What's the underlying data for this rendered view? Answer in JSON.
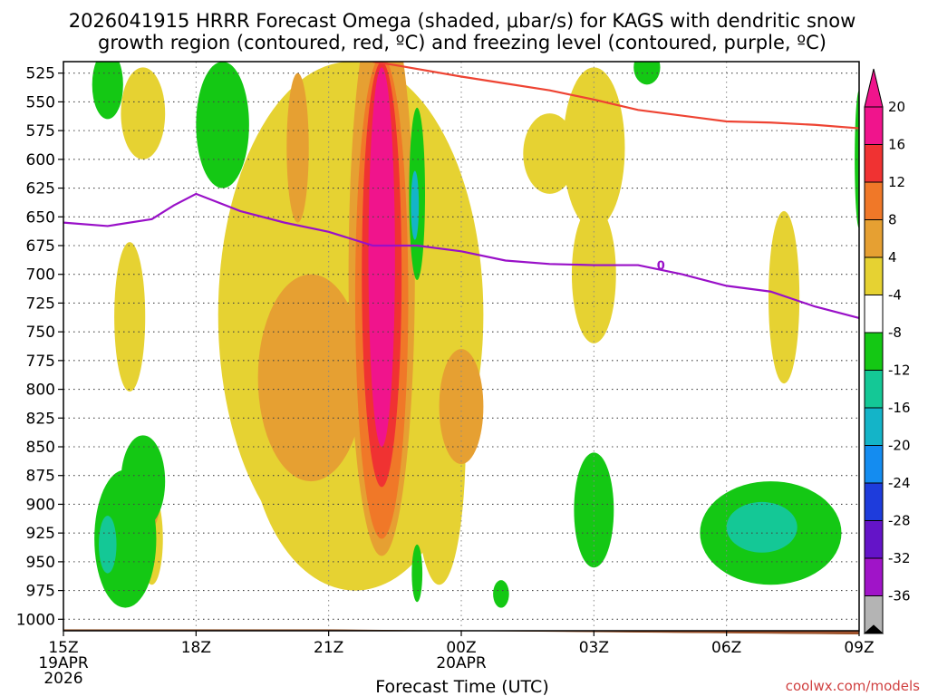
{
  "chart_data": {
    "type": "heatmap",
    "title_line1": "2026041915 HRRR Forecast Omega (shaded, μbar/s) for KAGS with dendritic snow",
    "title_line2": "growth region (contoured, red, ºC) and freezing level (contoured, purple, ºC)",
    "xlabel": "Forecast Time (UTC)",
    "credit": "coolwx.com/models",
    "x_ticks": [
      {
        "hour": 0,
        "label": "15Z",
        "date": "19APR",
        "year": "2026"
      },
      {
        "hour": 3,
        "label": "18Z"
      },
      {
        "hour": 6,
        "label": "21Z"
      },
      {
        "hour": 9,
        "label": "00Z",
        "date": "20APR"
      },
      {
        "hour": 12,
        "label": "03Z"
      },
      {
        "hour": 15,
        "label": "06Z"
      },
      {
        "hour": 18,
        "label": "09Z"
      }
    ],
    "xlim": [
      0,
      18
    ],
    "ylim": [
      1010,
      515
    ],
    "y_ticks": [
      525,
      550,
      575,
      600,
      625,
      650,
      675,
      700,
      725,
      750,
      775,
      800,
      825,
      850,
      875,
      900,
      925,
      950,
      975,
      1000
    ],
    "colorbar": {
      "labels": [
        "20",
        "16",
        "12",
        "8",
        "4",
        "-4",
        "-8",
        "-12",
        "-16",
        "-20",
        "-24",
        "-28",
        "-32",
        "-36"
      ],
      "colors": [
        "#f0148c",
        "#f03232",
        "#f07828",
        "#e6a032",
        "#e6d232",
        "#ffffff",
        "#14c814",
        "#14c896",
        "#14b4c8",
        "#148cf0",
        "#1e3cdc",
        "#6414c8",
        "#a014c8",
        "#b4b4b4"
      ]
    },
    "freezing_level_label": "0",
    "freezing_level": {
      "hours": [
        0,
        1,
        2,
        2.5,
        3,
        4,
        5,
        6,
        7,
        8,
        9,
        10,
        11,
        12,
        13,
        14,
        15,
        16,
        17,
        18
      ],
      "pressure": [
        655,
        658,
        652,
        640,
        630,
        645,
        655,
        663,
        675,
        675,
        680,
        688,
        691,
        692,
        692,
        700,
        710,
        715,
        728,
        738
      ]
    },
    "dgz_top": {
      "hours": [
        7,
        7.5,
        9,
        10,
        11,
        12,
        13,
        15,
        16,
        17,
        18
      ],
      "pressure": [
        515,
        518,
        528,
        534,
        540,
        548,
        557,
        567,
        568,
        570,
        573
      ]
    },
    "ground": {
      "hours": [
        0,
        6,
        9,
        12,
        15,
        18
      ],
      "pressure": [
        1009,
        1009,
        1010,
        1011,
        1012,
        1013
      ]
    },
    "omega_fields": [
      {
        "color": "#e6d232",
        "center_hour": 1.8,
        "center_p": 560,
        "half_width_hours": 0.5,
        "half_depth": 40
      },
      {
        "color": "#e6d232",
        "center_hour": 1.5,
        "center_p": 737,
        "half_width_hours": 0.35,
        "half_depth": 65
      },
      {
        "color": "#e6d232",
        "center_hour": 2.0,
        "center_p": 930,
        "half_width_hours": 0.25,
        "half_depth": 40
      },
      {
        "color": "#e6d232",
        "center_hour": 6.5,
        "center_p": 735,
        "half_width_hours": 3.0,
        "half_depth": 220
      },
      {
        "color": "#e6d232",
        "center_hour": 6.6,
        "center_p": 830,
        "half_width_hours": 2.4,
        "half_depth": 145
      },
      {
        "color": "#e6d232",
        "center_hour": 8.5,
        "center_p": 845,
        "half_width_hours": 0.6,
        "half_depth": 125
      },
      {
        "color": "#e6d232",
        "center_hour": 9.2,
        "center_p": 760,
        "half_width_hours": 0.2,
        "half_depth": 55
      },
      {
        "color": "#e6d232",
        "center_hour": 12.0,
        "center_p": 590,
        "half_width_hours": 0.7,
        "half_depth": 70
      },
      {
        "color": "#e6d232",
        "center_hour": 12.0,
        "center_p": 700,
        "half_width_hours": 0.5,
        "half_depth": 60
      },
      {
        "color": "#e6d232",
        "center_hour": 16.3,
        "center_p": 720,
        "half_width_hours": 0.35,
        "half_depth": 75
      },
      {
        "color": "#e6d232",
        "center_hour": 11.0,
        "center_p": 595,
        "half_width_hours": 0.6,
        "half_depth": 35
      },
      {
        "color": "#e6a032",
        "center_hour": 5.3,
        "center_p": 590,
        "half_width_hours": 0.25,
        "half_depth": 65
      },
      {
        "color": "#e6a032",
        "center_hour": 5.6,
        "center_p": 790,
        "half_width_hours": 1.2,
        "half_depth": 90
      },
      {
        "color": "#e6a032",
        "center_hour": 9.0,
        "center_p": 815,
        "half_width_hours": 0.5,
        "half_depth": 50
      },
      {
        "color": "#e6a032",
        "center_hour": 2.0,
        "center_p": 890,
        "half_width_hours": 0.2,
        "half_depth": 30
      },
      {
        "color": "#e6a032",
        "center_hour": 7.2,
        "center_p": 700,
        "half_width_hours": 0.75,
        "half_depth": 245
      },
      {
        "color": "#f07828",
        "center_hour": 7.2,
        "center_p": 720,
        "half_width_hours": 0.6,
        "half_depth": 210
      },
      {
        "color": "#f03232",
        "center_hour": 7.2,
        "center_p": 700,
        "half_width_hours": 0.45,
        "half_depth": 185
      },
      {
        "color": "#f0148c",
        "center_hour": 7.2,
        "center_p": 685,
        "half_width_hours": 0.3,
        "half_depth": 165
      },
      {
        "color": "#14c814",
        "center_hour": 1.0,
        "center_p": 535,
        "half_width_hours": 0.35,
        "half_depth": 30
      },
      {
        "color": "#14c814",
        "center_hour": 3.6,
        "center_p": 570,
        "half_width_hours": 0.6,
        "half_depth": 55
      },
      {
        "color": "#14c814",
        "center_hour": 1.4,
        "center_p": 930,
        "half_width_hours": 0.7,
        "half_depth": 60
      },
      {
        "color": "#14c814",
        "center_hour": 1.8,
        "center_p": 880,
        "half_width_hours": 0.5,
        "half_depth": 40
      },
      {
        "color": "#14c814",
        "center_hour": 8.0,
        "center_p": 630,
        "half_width_hours": 0.18,
        "half_depth": 75
      },
      {
        "color": "#14c814",
        "center_hour": 8.0,
        "center_p": 960,
        "half_width_hours": 0.12,
        "half_depth": 25
      },
      {
        "color": "#14c814",
        "center_hour": 9.9,
        "center_p": 978,
        "half_width_hours": 0.18,
        "half_depth": 12
      },
      {
        "color": "#14c814",
        "center_hour": 12.0,
        "center_p": 905,
        "half_width_hours": 0.45,
        "half_depth": 50
      },
      {
        "color": "#14c814",
        "center_hour": 16.0,
        "center_p": 925,
        "half_width_hours": 1.6,
        "half_depth": 45
      },
      {
        "color": "#14c814",
        "center_hour": 13.2,
        "center_p": 520,
        "half_width_hours": 0.3,
        "half_depth": 15
      },
      {
        "color": "#14c814",
        "center_hour": 18.0,
        "center_p": 600,
        "half_width_hours": 0.1,
        "half_depth": 60
      },
      {
        "color": "#14c896",
        "center_hour": 1.0,
        "center_p": 935,
        "half_width_hours": 0.2,
        "half_depth": 25
      },
      {
        "color": "#14c896",
        "center_hour": 15.8,
        "center_p": 920,
        "half_width_hours": 0.8,
        "half_depth": 22
      },
      {
        "color": "#14b4c8",
        "center_hour": 7.95,
        "center_p": 640,
        "half_width_hours": 0.09,
        "half_depth": 30
      }
    ]
  }
}
